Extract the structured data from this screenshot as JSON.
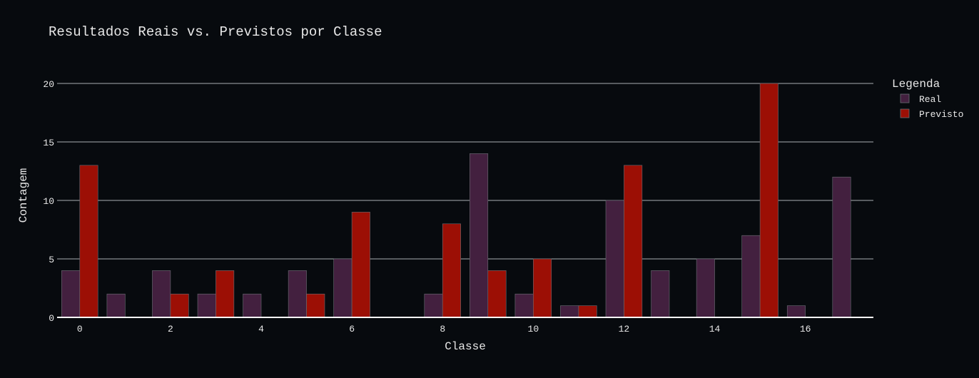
{
  "chart_data": {
    "type": "bar",
    "title": "Resultados Reais vs. Previstos por Classe",
    "xlabel": "Classe",
    "ylabel": "Contagem",
    "x_ticks": [
      0,
      2,
      4,
      6,
      8,
      10,
      12,
      14,
      16
    ],
    "y_ticks": [
      0,
      5,
      10,
      15,
      20
    ],
    "xlim": [
      -0.5,
      17.5
    ],
    "ylim": [
      0,
      20
    ],
    "grid": true,
    "legend_title": "Legenda",
    "legend_position": "right",
    "categories": [
      0,
      1,
      2,
      3,
      4,
      5,
      6,
      7,
      8,
      9,
      10,
      11,
      12,
      13,
      14,
      15,
      16,
      17
    ],
    "series": [
      {
        "name": "Real",
        "color": "#43203f",
        "values": [
          4,
          2,
          4,
          2,
          2,
          4,
          5,
          0,
          2,
          14,
          2,
          1,
          10,
          4,
          5,
          7,
          1,
          12
        ]
      },
      {
        "name": "Previsto",
        "color": "#9c0f05",
        "values": [
          13,
          0,
          2,
          4,
          0,
          2,
          9,
          0,
          8,
          4,
          5,
          1,
          13,
          0,
          0,
          20,
          0,
          0
        ]
      }
    ]
  }
}
